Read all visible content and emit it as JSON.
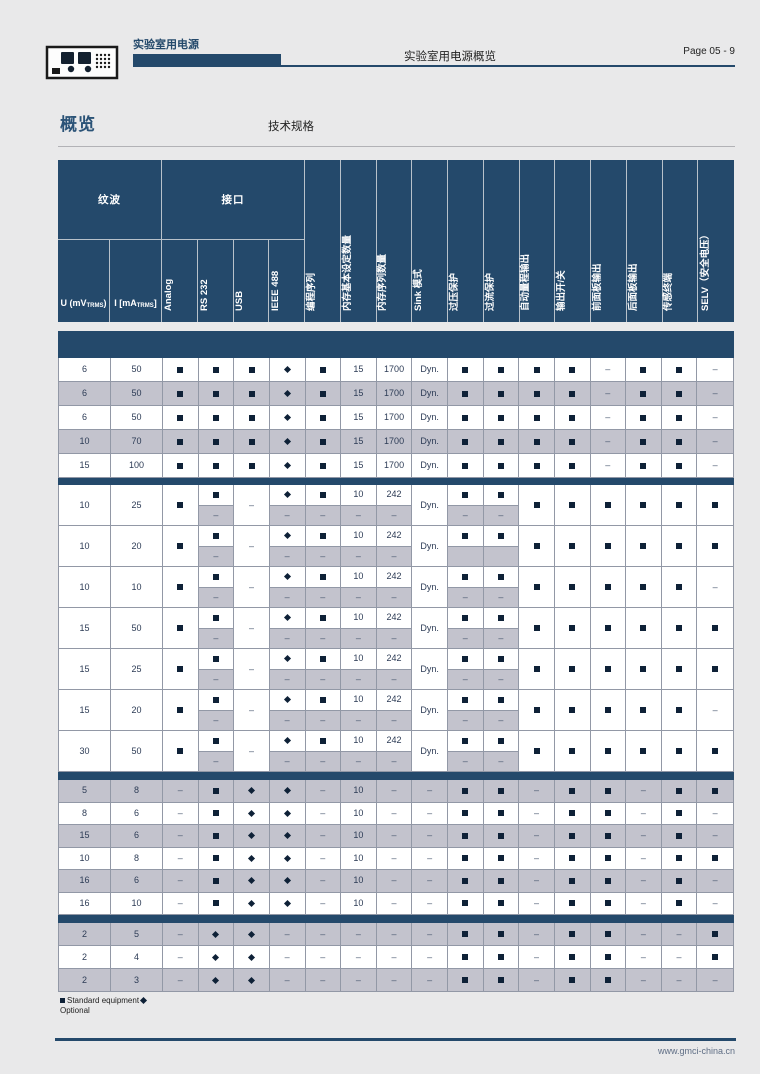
{
  "page_header": {
    "brand": "实验室用电源",
    "center_title": "实验室用电源概览",
    "page_number": "Page 05 - 9"
  },
  "section": {
    "title": "概览",
    "subtitle": "技术规格"
  },
  "colors": {
    "navy": "#24496b",
    "glyph": "#0e2137",
    "gray_row": "#c3c3cd",
    "page_bg": "#e9e9ea"
  },
  "table": {
    "groups": [
      {
        "label": "纹波",
        "span": 2
      },
      {
        "label": "接口",
        "span": 4
      }
    ],
    "unit_columns": [
      {
        "pre": "U (mV",
        "sub": "TRMS",
        "post": ")"
      },
      {
        "pre": "I [mA",
        "sub": "TRMS",
        "post": "]"
      }
    ],
    "rotated_columns": [
      "Analog",
      "RS 232",
      "USB",
      "IEEE 488",
      "编程序列",
      "内存基本设定数量",
      "内存序列数量",
      "Sink 模式",
      "过压保护",
      "过流保护",
      "自动量程输出",
      "输出开/关",
      "前面板输出",
      "后面板输出",
      "传感终端",
      "SELV（安全电压）"
    ],
    "symbols": {
      "s": "standard-square",
      "d": "optional-diamond",
      "-": "dash",
      "": "empty"
    },
    "blocks": [
      {
        "name": "block-1",
        "stripes": [
          "w",
          "g",
          "w",
          "g",
          "w"
        ],
        "rows": [
          [
            "6",
            "50",
            "s",
            "s",
            "s",
            "d",
            "s",
            "15",
            "1700",
            "Dyn.",
            "s",
            "s",
            "s",
            "s",
            "-",
            "s",
            "s",
            "-"
          ],
          [
            "6",
            "50",
            "s",
            "s",
            "s",
            "d",
            "s",
            "15",
            "1700",
            "Dyn.",
            "s",
            "s",
            "s",
            "s",
            "-",
            "s",
            "s",
            "-"
          ],
          [
            "6",
            "50",
            "s",
            "s",
            "s",
            "d",
            "s",
            "15",
            "1700",
            "Dyn.",
            "s",
            "s",
            "s",
            "s",
            "-",
            "s",
            "s",
            "-"
          ],
          [
            "10",
            "70",
            "s",
            "s",
            "s",
            "d",
            "s",
            "15",
            "1700",
            "Dyn.",
            "s",
            "s",
            "s",
            "s",
            "-",
            "s",
            "s",
            "-"
          ],
          [
            "15",
            "100",
            "s",
            "s",
            "s",
            "d",
            "s",
            "15",
            "1700",
            "Dyn.",
            "s",
            "s",
            "s",
            "s",
            "-",
            "s",
            "s",
            "-"
          ]
        ]
      },
      {
        "name": "block-2",
        "stripes": [
          "w",
          "w",
          "w",
          "w",
          "w",
          "w",
          "w"
        ],
        "rows": [
          [
            "10",
            "25",
            "s",
            [
              "s",
              "-"
            ],
            "-",
            [
              "d",
              "-"
            ],
            [
              "s",
              "-"
            ],
            [
              "10",
              "-"
            ],
            [
              "242",
              "-"
            ],
            "Dyn.",
            [
              "s",
              "-"
            ],
            [
              "s",
              "-"
            ],
            "s",
            "s",
            "s",
            "s",
            "s",
            "s"
          ],
          [
            "10",
            "20",
            "s",
            [
              "s",
              "-"
            ],
            "-",
            [
              "d",
              "-"
            ],
            [
              "s",
              "-"
            ],
            [
              "10",
              "-"
            ],
            [
              "242",
              "-"
            ],
            "Dyn.",
            [
              "s",
              ""
            ],
            [
              "s",
              ""
            ],
            "s",
            "s",
            "s",
            "s",
            "s",
            "s"
          ],
          [
            "10",
            "10",
            "s",
            [
              "s",
              "-"
            ],
            "-",
            [
              "d",
              "-"
            ],
            [
              "s",
              "-"
            ],
            [
              "10",
              "-"
            ],
            [
              "242",
              "-"
            ],
            "Dyn.",
            [
              "s",
              "-"
            ],
            [
              "s",
              "-"
            ],
            "s",
            "s",
            "s",
            "s",
            "s",
            "-"
          ],
          [
            "15",
            "50",
            "s",
            [
              "s",
              "-"
            ],
            "-",
            [
              "d",
              "-"
            ],
            [
              "s",
              "-"
            ],
            [
              "10",
              "-"
            ],
            [
              "242",
              "-"
            ],
            "Dyn.",
            [
              "s",
              "-"
            ],
            [
              "s",
              "-"
            ],
            "s",
            "s",
            "s",
            "s",
            "s",
            "s"
          ],
          [
            "15",
            "25",
            "s",
            [
              "s",
              "-"
            ],
            "-",
            [
              "d",
              "-"
            ],
            [
              "s",
              "-"
            ],
            [
              "10",
              "-"
            ],
            [
              "242",
              "-"
            ],
            "Dyn.",
            [
              "s",
              "-"
            ],
            [
              "s",
              "-"
            ],
            "s",
            "s",
            "s",
            "s",
            "s",
            "s"
          ],
          [
            "15",
            "20",
            "s",
            [
              "s",
              "-"
            ],
            "-",
            [
              "d",
              "-"
            ],
            [
              "s",
              "-"
            ],
            [
              "10",
              "-"
            ],
            [
              "242",
              "-"
            ],
            "Dyn.",
            [
              "s",
              "-"
            ],
            [
              "s",
              "-"
            ],
            "s",
            "s",
            "s",
            "s",
            "s",
            "-"
          ],
          [
            "30",
            "50",
            "s",
            [
              "s",
              "-"
            ],
            "-",
            [
              "d",
              "-"
            ],
            [
              "s",
              "-"
            ],
            [
              "10",
              "-"
            ],
            [
              "242",
              "-"
            ],
            "Dyn.",
            [
              "s",
              "-"
            ],
            [
              "s",
              "-"
            ],
            "s",
            "s",
            "s",
            "s",
            "s",
            "s"
          ]
        ]
      },
      {
        "name": "block-3",
        "stripes": [
          "g",
          "w",
          "g",
          "w",
          "g",
          "w"
        ],
        "rows": [
          [
            "5",
            "8",
            "-",
            "s",
            "d",
            "d",
            "-",
            "10",
            "-",
            "-",
            "s",
            "s",
            "-",
            "s",
            "s",
            "-",
            "s",
            "s"
          ],
          [
            "8",
            "6",
            "-",
            "s",
            "d",
            "d",
            "-",
            "10",
            "-",
            "-",
            "s",
            "s",
            "-",
            "s",
            "s",
            "-",
            "s",
            "-"
          ],
          [
            "15",
            "6",
            "-",
            "s",
            "d",
            "d",
            "-",
            "10",
            "-",
            "-",
            "s",
            "s",
            "-",
            "s",
            "s",
            "-",
            "s",
            "-"
          ],
          [
            "10",
            "8",
            "-",
            "s",
            "d",
            "d",
            "-",
            "10",
            "-",
            "-",
            "s",
            "s",
            "-",
            "s",
            "s",
            "-",
            "s",
            "s"
          ],
          [
            "16",
            "6",
            "-",
            "s",
            "d",
            "d",
            "-",
            "10",
            "-",
            "-",
            "s",
            "s",
            "-",
            "s",
            "s",
            "-",
            "s",
            "-"
          ],
          [
            "16",
            "10",
            "-",
            "s",
            "d",
            "d",
            "-",
            "10",
            "-",
            "-",
            "s",
            "s",
            "-",
            "s",
            "s",
            "-",
            "s",
            "-"
          ]
        ]
      },
      {
        "name": "block-4",
        "stripes": [
          "g",
          "w",
          "g"
        ],
        "rows": [
          [
            "2",
            "5",
            "-",
            "d",
            "d",
            "-",
            "-",
            "-",
            "-",
            "-",
            "s",
            "s",
            "-",
            "s",
            "s",
            "-",
            "-",
            "s"
          ],
          [
            "2",
            "4",
            "-",
            "d",
            "d",
            "-",
            "-",
            "-",
            "-",
            "-",
            "s",
            "s",
            "-",
            "s",
            "s",
            "-",
            "-",
            "s"
          ],
          [
            "2",
            "3",
            "-",
            "d",
            "d",
            "-",
            "-",
            "-",
            "-",
            "-",
            "s",
            "s",
            "-",
            "s",
            "s",
            "-",
            "-",
            "-"
          ]
        ]
      }
    ]
  },
  "legend": {
    "standard": "Standard equipment",
    "optional": "Optional"
  },
  "footer": {
    "website": "www.gmci-china.cn"
  }
}
